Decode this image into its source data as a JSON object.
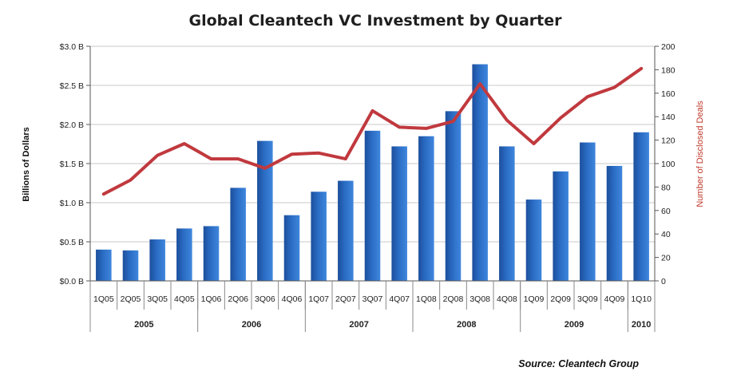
{
  "chart_data": {
    "type": "bar",
    "title": "Global Cleantech VC Investment by Quarter",
    "ylabel": "Billions of Dollars",
    "y2label": "Number of Disclosed Deals",
    "source": "Source: Cleantech Group",
    "categories": [
      "1Q05",
      "2Q05",
      "3Q05",
      "4Q05",
      "1Q06",
      "2Q06",
      "3Q06",
      "4Q06",
      "1Q07",
      "2Q07",
      "3Q07",
      "4Q07",
      "1Q08",
      "2Q08",
      "3Q08",
      "4Q08",
      "1Q09",
      "2Q09",
      "3Q09",
      "4Q09",
      "1Q10"
    ],
    "years": [
      {
        "label": "2005",
        "count": 4
      },
      {
        "label": "2006",
        "count": 4
      },
      {
        "label": "2007",
        "count": 4
      },
      {
        "label": "2008",
        "count": 4
      },
      {
        "label": "2009",
        "count": 4
      },
      {
        "label": "2010",
        "count": 1
      }
    ],
    "ylim": [
      0,
      3.0
    ],
    "yticks": [
      0,
      0.5,
      1.0,
      1.5,
      2.0,
      2.5,
      3.0
    ],
    "ytick_labels": [
      "$0.0 B",
      "$0.5 B",
      "$1.0 B",
      "$1.5 B",
      "$2.0 B",
      "$2.5 B",
      "$3.0 B"
    ],
    "y2lim": [
      0,
      200
    ],
    "y2ticks": [
      0,
      20,
      40,
      60,
      80,
      100,
      120,
      140,
      160,
      180,
      200
    ],
    "y2tick_labels": [
      "0",
      "20",
      "40",
      "60",
      "80",
      "100",
      "120",
      "140",
      "160",
      "180",
      "200"
    ],
    "grid": true,
    "legend": "none",
    "series": [
      {
        "type": "bar",
        "axis": "left",
        "color": "#2a6cc4",
        "values": [
          0.4,
          0.39,
          0.53,
          0.67,
          0.7,
          1.19,
          1.79,
          0.84,
          1.14,
          1.28,
          1.92,
          1.72,
          1.85,
          2.17,
          2.77,
          1.72,
          1.04,
          1.4,
          1.77,
          1.47,
          1.9
        ]
      },
      {
        "type": "line",
        "axis": "right",
        "color": "#c0393e",
        "values": [
          74,
          86,
          107,
          117,
          104,
          104,
          96,
          108,
          109,
          104,
          145,
          131,
          130,
          136,
          168,
          137,
          117,
          139,
          157,
          165,
          181
        ]
      }
    ]
  }
}
